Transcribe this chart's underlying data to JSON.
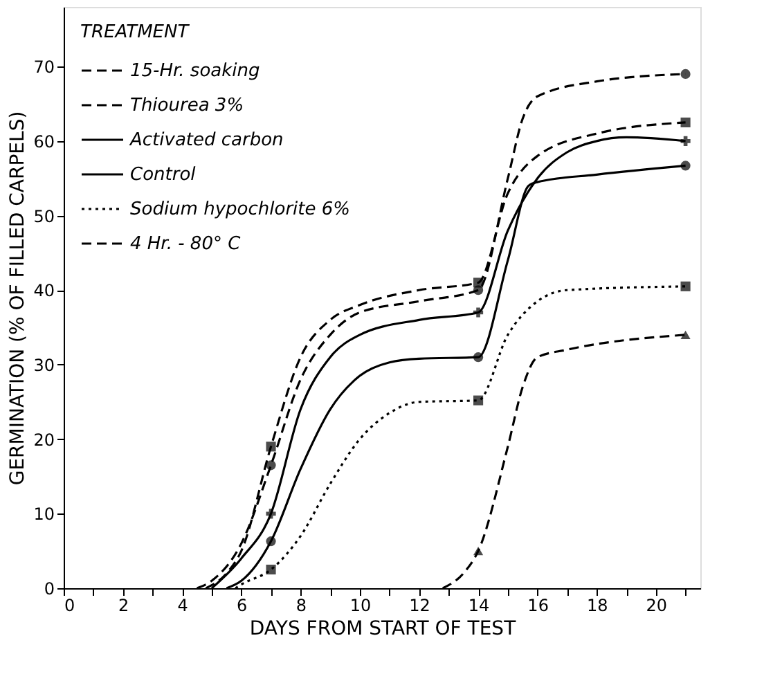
{
  "chart_data": {
    "type": "line",
    "xlabel": "DAYS FROM START OF TEST",
    "ylabel": "GERMINATION (% OF FILLED CARPELS)",
    "legend_title": "TREATMENT",
    "legend": "top left",
    "grid": false,
    "xlim": [
      0,
      21.5
    ],
    "ylim": [
      0,
      78
    ],
    "xticks": [
      0,
      {
        "value": 1,
        "label": null
      },
      2,
      {
        "value": 3,
        "label": null
      },
      4,
      {
        "value": 5,
        "label": null
      },
      6,
      {
        "value": 7,
        "label": null
      },
      8,
      {
        "value": 9,
        "label": null
      },
      10,
      {
        "value": 11,
        "label": null
      },
      12,
      {
        "value": 13,
        "label": null
      },
      14,
      {
        "value": 15,
        "label": null
      },
      16,
      {
        "value": 17,
        "label": null
      },
      18,
      {
        "value": 19,
        "label": null
      },
      20,
      {
        "value": 21,
        "label": null
      }
    ],
    "yticks": [
      0,
      10,
      20,
      30,
      40,
      50,
      60,
      70
    ],
    "series": [
      {
        "name": "15-Hr. soaking",
        "color": "#000000",
        "line_style": "dashed",
        "marker": "none",
        "x": [
          4.5,
          5,
          6,
          7,
          8,
          9,
          10,
          12,
          14,
          15,
          15.5,
          16,
          18,
          21
        ],
        "values": [
          0,
          1,
          6,
          16.5,
          28,
          34,
          37,
          38.5,
          40,
          55,
          63,
          66,
          68,
          69
        ]
      },
      {
        "name": "Thiourea 3%",
        "color": "#000000",
        "line_style": "dashed",
        "marker": "none",
        "x": [
          4.8,
          5.5,
          6,
          7,
          8,
          9,
          10,
          12,
          14,
          15,
          16,
          18,
          21
        ],
        "values": [
          0,
          2,
          5,
          19,
          31,
          36,
          38,
          40,
          41,
          53,
          58,
          61,
          62.5
        ]
      },
      {
        "name": "Activated carbon",
        "color": "#000000",
        "line_style": "solid",
        "marker": "none",
        "x": [
          5,
          6,
          7,
          8,
          9,
          10,
          12,
          14,
          15,
          16,
          17,
          18,
          19,
          21
        ],
        "values": [
          0,
          4,
          10,
          24,
          31,
          34,
          36,
          37,
          48,
          55,
          58.5,
          60,
          60.5,
          60
        ]
      },
      {
        "name": "Control",
        "color": "#000000",
        "line_style": "solid",
        "marker": "none",
        "x": [
          5.5,
          6,
          7,
          8,
          9,
          10,
          11,
          12,
          14,
          15,
          15.7,
          16,
          18,
          21
        ],
        "values": [
          0,
          1,
          6.3,
          16,
          24,
          28.5,
          30.3,
          30.8,
          31,
          44,
          54,
          54.5,
          55.5,
          56.7
        ]
      },
      {
        "name": "Sodium hypochlorite 6%",
        "color": "#000000",
        "line_style": "dotted",
        "marker": "none",
        "x": [
          5.8,
          6,
          7,
          8,
          9,
          10,
          11,
          12,
          14,
          15,
          16,
          17,
          21
        ],
        "values": [
          0,
          0.5,
          2.5,
          7,
          14,
          20,
          23.5,
          25,
          25.2,
          34,
          38.5,
          40,
          40.5
        ]
      },
      {
        "name": "4 Hr. - 80° C",
        "color": "#000000",
        "line_style": "dashed",
        "marker": "none",
        "x": [
          12.8,
          13.5,
          14,
          15,
          15.5,
          16,
          17,
          21
        ],
        "values": [
          0,
          2,
          5,
          19,
          27,
          31,
          32,
          34
        ]
      },
      {
        "type": "scatter",
        "color": "#000000",
        "marker": "circle",
        "x": [
          7,
          14,
          21
        ],
        "values": [
          16.5,
          40,
          69
        ]
      },
      {
        "type": "scatter",
        "color": "#000000",
        "marker": "square",
        "x": [
          7,
          14,
          21
        ],
        "values": [
          19,
          41,
          62.5
        ]
      },
      {
        "type": "scatter",
        "color": "#000000",
        "marker": "cross",
        "x": [
          7,
          14,
          21
        ],
        "values": [
          10,
          37,
          60
        ]
      },
      {
        "type": "scatter",
        "color": "#000000",
        "marker": "circle",
        "x": [
          7,
          14,
          21
        ],
        "values": [
          6.3,
          31,
          56.7
        ]
      },
      {
        "type": "scatter",
        "color": "#000000",
        "marker": "square",
        "x": [
          7,
          14,
          21
        ],
        "values": [
          2.5,
          25.2,
          40.5
        ]
      },
      {
        "type": "scatter",
        "color": "#000000",
        "marker": "triangle",
        "x": [
          14,
          21
        ],
        "values": [
          5,
          34
        ]
      }
    ]
  }
}
